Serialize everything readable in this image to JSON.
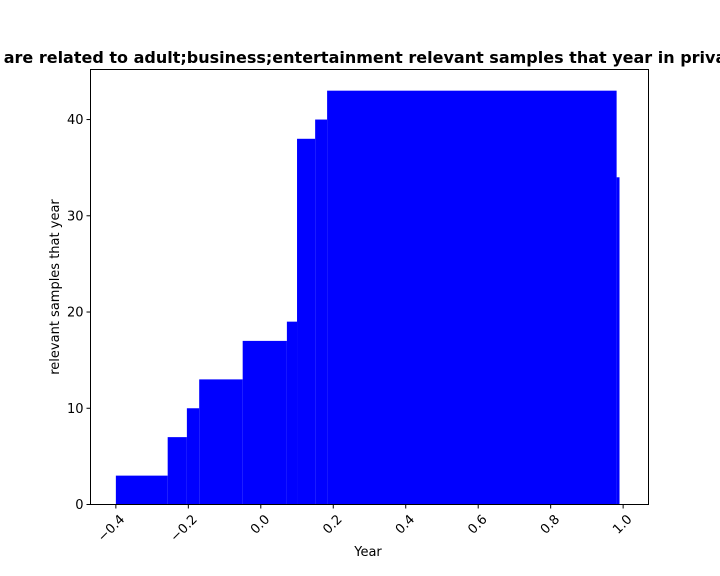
{
  "chart_data": {
    "type": "bar",
    "title": "are related to adult;business;entertainment relevant samples that year in priva",
    "xlabel": "Year",
    "ylabel": "relevant samples that year",
    "xlim": [
      -0.47,
      1.07
    ],
    "ylim": [
      0,
      45.2
    ],
    "xticks": [
      -0.4,
      -0.2,
      0.0,
      0.2,
      0.4,
      0.6,
      0.8,
      1.0
    ],
    "xtick_labels": [
      "−0.4",
      "−0.2",
      "0.0",
      "0.2",
      "0.4",
      "0.6",
      "0.8",
      "1.0"
    ],
    "yticks": [
      0,
      10,
      20,
      30,
      40
    ],
    "ytick_labels": [
      "0",
      "10",
      "20",
      "30",
      "40"
    ],
    "bar_color": "#0000ff",
    "bars": [
      {
        "x0": -0.4,
        "x1": -0.257,
        "value": 3
      },
      {
        "x0": -0.257,
        "x1": -0.204,
        "value": 7
      },
      {
        "x0": -0.204,
        "x1": -0.17,
        "value": 10
      },
      {
        "x0": -0.17,
        "x1": -0.05,
        "value": 13
      },
      {
        "x0": -0.05,
        "x1": 0.072,
        "value": 17
      },
      {
        "x0": 0.072,
        "x1": 0.1,
        "value": 19
      },
      {
        "x0": 0.1,
        "x1": 0.15,
        "value": 38
      },
      {
        "x0": 0.15,
        "x1": 0.183,
        "value": 40
      },
      {
        "x0": 0.183,
        "x1": 0.982,
        "value": 43
      },
      {
        "x0": 0.982,
        "x1": 0.99,
        "value": 34
      }
    ]
  }
}
